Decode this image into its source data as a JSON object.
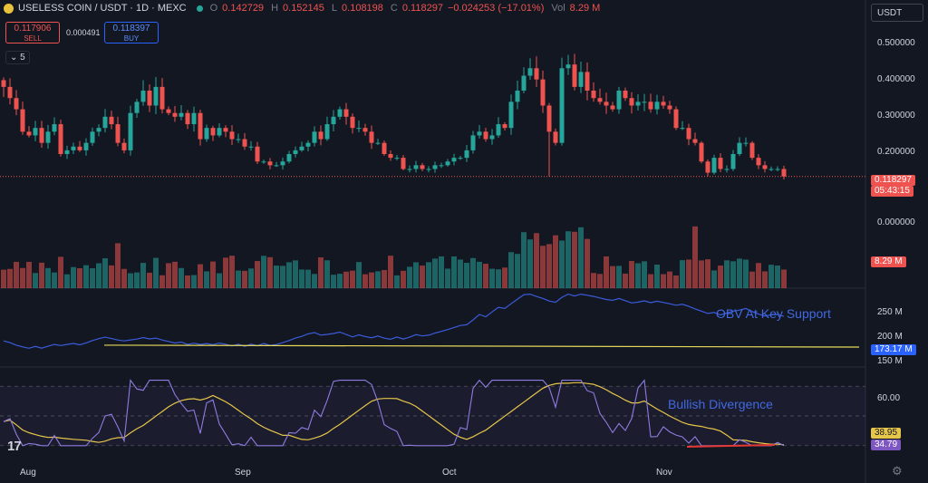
{
  "header": {
    "symbol": "USELESS COIN / USDT · 1D · MEXC",
    "open_label": "O",
    "open": "0.142729",
    "high_label": "H",
    "high": "0.152145",
    "low_label": "L",
    "low": "0.108198",
    "close_label": "C",
    "close": "0.118297",
    "change": "−0.024253 (−17.01%)",
    "vol_label": "Vol",
    "vol": "8.29 M"
  },
  "trade": {
    "sell_price": "0.117906",
    "sell_label": "SELL",
    "buy_price": "0.118397",
    "buy_label": "BUY",
    "spread": "0.000491"
  },
  "collapse_count": "5",
  "currency_button": "USDT",
  "colors": {
    "up": "#26a69a",
    "down": "#ef5350",
    "obv": "#3b5bdb",
    "rsi": "#8e7ce0",
    "rsi_ma": "#e6c64a",
    "support": "#e6d95a",
    "bg": "#131722",
    "divergence": "#e53935"
  },
  "icons": [
    "coin-logo-icon",
    "market-open-dot-icon",
    "chevron-down-icon",
    "tradingview-logo-icon",
    "gear-icon"
  ],
  "chart_data": [
    {
      "type": "candlestick",
      "title": "USELESS COIN / USDT · 1D · MEXC",
      "price_axis_ticks": [
        "0.500000",
        "0.400000",
        "0.300000",
        "0.200000",
        "0.000000"
      ],
      "ylim": [
        0.095,
        0.52
      ],
      "last_price": "0.118297",
      "countdown": "05:43:15",
      "x_ticks": [
        "Aug",
        "Sep",
        "Oct",
        "Nov"
      ],
      "closes": [
        0.36,
        0.33,
        0.3,
        0.24,
        0.23,
        0.25,
        0.21,
        0.24,
        0.26,
        0.18,
        0.19,
        0.2,
        0.19,
        0.21,
        0.24,
        0.25,
        0.28,
        0.26,
        0.21,
        0.19,
        0.29,
        0.32,
        0.35,
        0.31,
        0.36,
        0.3,
        0.29,
        0.28,
        0.29,
        0.26,
        0.29,
        0.22,
        0.25,
        0.23,
        0.25,
        0.24,
        0.22,
        0.22,
        0.2,
        0.2,
        0.16,
        0.16,
        0.15,
        0.15,
        0.16,
        0.18,
        0.19,
        0.2,
        0.21,
        0.24,
        0.22,
        0.26,
        0.28,
        0.3,
        0.28,
        0.25,
        0.25,
        0.24,
        0.21,
        0.21,
        0.18,
        0.17,
        0.17,
        0.14,
        0.14,
        0.15,
        0.14,
        0.14,
        0.15,
        0.15,
        0.16,
        0.17,
        0.17,
        0.19,
        0.23,
        0.24,
        0.22,
        0.23,
        0.26,
        0.25,
        0.32,
        0.35,
        0.39,
        0.41,
        0.38,
        0.31,
        0.24,
        0.21,
        0.41,
        0.42,
        0.36,
        0.4,
        0.35,
        0.33,
        0.32,
        0.31,
        0.3,
        0.35,
        0.33,
        0.31,
        0.32,
        0.32,
        0.3,
        0.32,
        0.31,
        0.3,
        0.25,
        0.25,
        0.22,
        0.21,
        0.16,
        0.13,
        0.17,
        0.14,
        0.14,
        0.18,
        0.21,
        0.21,
        0.17,
        0.15,
        0.14,
        0.14,
        0.14,
        0.12
      ]
    },
    {
      "type": "bar",
      "title": "Vol",
      "value_label": "8.29 M",
      "axis_tick": "0.000000"
    },
    {
      "type": "line",
      "annotation": "OBV At Key Support",
      "y_ticks": [
        "250 M",
        "200 M",
        "150 M"
      ],
      "last_value": "173.17 M",
      "ylim": [
        150,
        290
      ]
    },
    {
      "type": "line",
      "annotation": "Bullish Divergence",
      "y_ticks": [
        "60.00"
      ],
      "rsi_ma_value": "38.95",
      "rsi_value": "34.79",
      "ylim": [
        25,
        75
      ]
    }
  ]
}
